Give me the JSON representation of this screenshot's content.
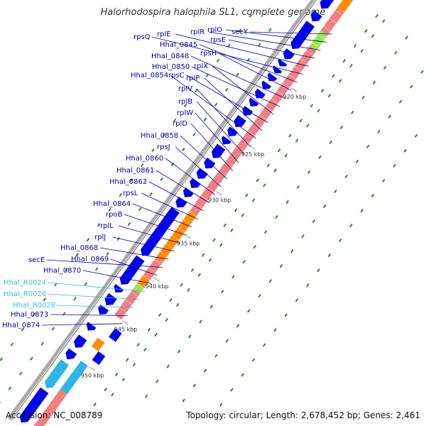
{
  "title": "Halorhodospira halophila SL1, complete genome",
  "accession": "Accession: NC_008789",
  "topology": "Topology: circular; Length: 2,678,452 bp; Genes: 2,461",
  "colors": {
    "cds": "#0000ee",
    "cds_light": "#2fb4e6",
    "rrna_rna": "#f08080",
    "orange": "#ff8c00",
    "green": "#99e84a",
    "label": "#0000aa",
    "label_light": "#33bbee",
    "dots": "#208a20"
  },
  "kbp_ticks": [
    "920 kbp",
    "925 kbp",
    "930 kbp",
    "935 kbp",
    "940 kbp",
    "945 kbp",
    "950 kbp"
  ],
  "gene_labels": [
    {
      "text": "secY",
      "light": false
    },
    {
      "text": "rplO",
      "light": false
    },
    {
      "text": "rplR",
      "light": false
    },
    {
      "text": "rpsE",
      "light": false
    },
    {
      "text": "rplE",
      "light": false
    },
    {
      "text": "rpsQ",
      "light": false
    },
    {
      "text": "Hhal_0845",
      "light": false
    },
    {
      "text": "rpsH",
      "light": false
    },
    {
      "text": "Hhal_0848",
      "light": false
    },
    {
      "text": "Hhal_0850",
      "light": false
    },
    {
      "text": "rplX",
      "light": false
    },
    {
      "text": "rpsC",
      "light": false
    },
    {
      "text": "rplP",
      "light": false
    },
    {
      "text": "Hhal_0854",
      "light": false
    },
    {
      "text": "rplV",
      "light": false
    },
    {
      "text": "rplB",
      "light": false
    },
    {
      "text": "rplW",
      "light": false
    },
    {
      "text": "rplD",
      "light": false
    },
    {
      "text": "Hhal_0858",
      "light": false
    },
    {
      "text": "rpsJ",
      "light": false
    },
    {
      "text": "Hhal_0860",
      "light": false
    },
    {
      "text": "Hhal_0861",
      "light": false
    },
    {
      "text": "Hhal_0862",
      "light": false
    },
    {
      "text": "rpsL",
      "light": false
    },
    {
      "text": "Hhal_0864",
      "light": false
    },
    {
      "text": "rpoB",
      "light": false
    },
    {
      "text": "rplL",
      "light": false
    },
    {
      "text": "rplJ",
      "light": false
    },
    {
      "text": "Hhal_0868",
      "light": false
    },
    {
      "text": "secE",
      "light": false
    },
    {
      "text": "Hhal_0869",
      "light": false
    },
    {
      "text": "Hhal_0870",
      "light": false
    },
    {
      "text": "Hhal_R0024",
      "light": true
    },
    {
      "text": "Hhal_R0026",
      "light": true
    },
    {
      "text": "Hhal_R0028",
      "light": true
    },
    {
      "text": "Hhal_0873",
      "light": false
    },
    {
      "text": "Hhal_0874",
      "light": false
    }
  ]
}
